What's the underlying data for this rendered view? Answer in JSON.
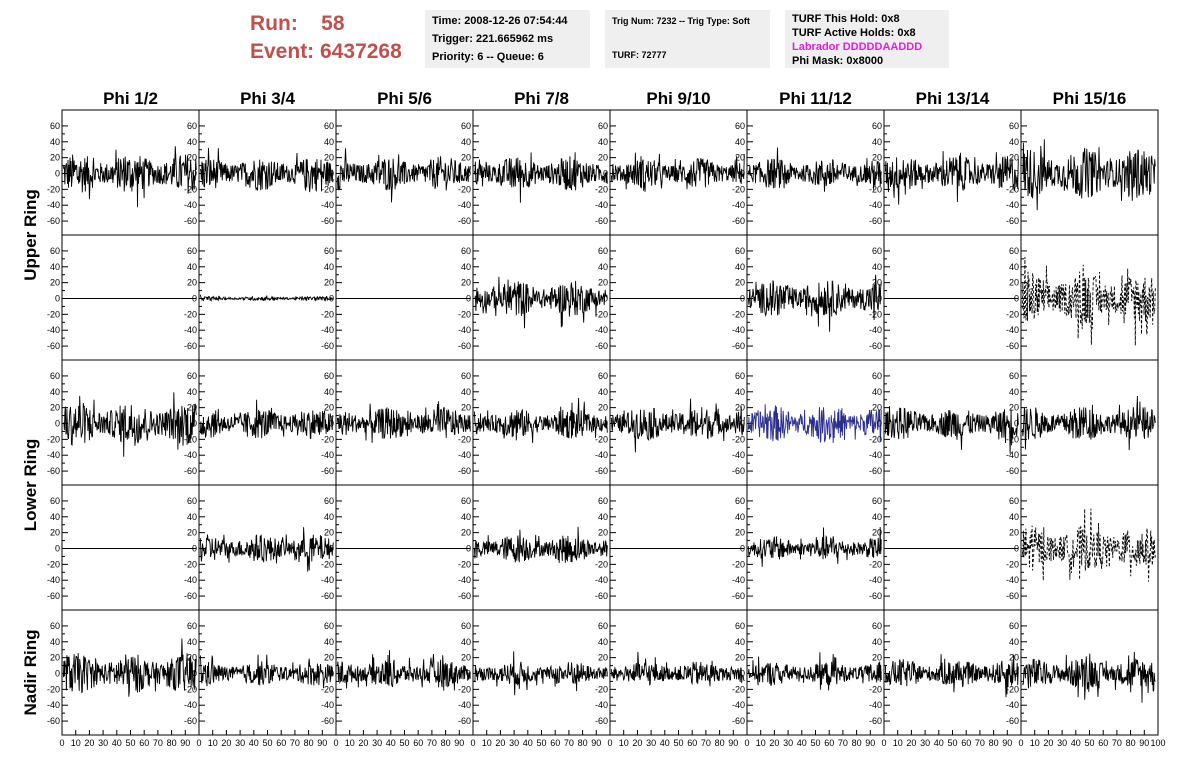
{
  "header": {
    "run_label": "Run:",
    "run_value": "58",
    "event_label": "Event:",
    "event_value": "6437268",
    "time_line": "Time: 2008-12-26 07:54:44",
    "trigger_line": "Trigger: 221.665962 ms",
    "priority_line": "Priority: 6 -- Queue: 6",
    "trig_line": "Trig Num: 7232 -- Trig Type: Soft",
    "turf_line": "TURF: 72777",
    "turf_hold_line": "TURF This Hold: 0x8",
    "turf_active_line": "TURF Active Holds: 0x8",
    "labrador_line": "Labrador DDDDDAADDD",
    "phi_mask_line": "Phi Mask: 0x8000"
  },
  "chart_data": {
    "type": "line",
    "title": "",
    "xlabel": "",
    "ylabel": "",
    "columns": [
      "Phi 1/2",
      "Phi 3/4",
      "Phi 5/6",
      "Phi 7/8",
      "Phi 9/10",
      "Phi 11/12",
      "Phi 13/14",
      "Phi 15/16"
    ],
    "ring_labels": [
      "Upper Ring",
      "Lower Ring",
      "Nadir Ring"
    ],
    "xlim": [
      0,
      100
    ],
    "ylim": [
      -70,
      70
    ],
    "x_ticks": [
      0,
      10,
      20,
      30,
      40,
      50,
      60,
      70,
      80,
      90,
      100
    ],
    "y_ticks": [
      -60,
      -40,
      -20,
      0,
      20,
      40,
      60
    ],
    "grid": false,
    "trace_colors": {
      "normal": "#000000",
      "highlight": "#2b2f8f"
    },
    "rows": [
      {
        "ring": "Upper Ring",
        "amplitudes": [
          20,
          17,
          17,
          17,
          15,
          15,
          18,
          25
        ]
      },
      {
        "ring": "Upper Ring",
        "amplitudes": [
          0,
          2,
          0,
          18,
          0,
          18,
          0,
          26
        ],
        "dashed_columns": [
          7
        ]
      },
      {
        "ring": "Lower Ring",
        "amplitudes": [
          22,
          15,
          16,
          15,
          17,
          18,
          16,
          17
        ],
        "highlight_columns": [
          5
        ]
      },
      {
        "ring": "Lower Ring",
        "amplitudes": [
          0,
          14,
          0,
          14,
          0,
          12,
          0,
          22
        ],
        "dashed_columns": [
          7
        ]
      },
      {
        "ring": "Nadir Ring",
        "amplitudes": [
          20,
          12,
          14,
          12,
          12,
          12,
          14,
          16
        ]
      }
    ]
  }
}
